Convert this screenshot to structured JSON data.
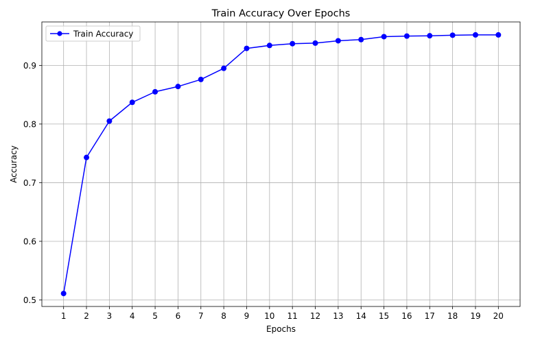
{
  "chart_data": {
    "type": "line",
    "title": "Train Accuracy Over Epochs",
    "xlabel": "Epochs",
    "ylabel": "Accuracy",
    "x": [
      1,
      2,
      3,
      4,
      5,
      6,
      7,
      8,
      9,
      10,
      11,
      12,
      13,
      14,
      15,
      16,
      17,
      18,
      19,
      20
    ],
    "series": [
      {
        "name": "Train Accuracy",
        "color": "#0000ff",
        "marker": "circle",
        "values": [
          0.511,
          0.743,
          0.805,
          0.837,
          0.855,
          0.864,
          0.876,
          0.895,
          0.929,
          0.934,
          0.937,
          0.938,
          0.942,
          0.944,
          0.949,
          0.95,
          0.9505,
          0.9515,
          0.952,
          0.952
        ]
      }
    ],
    "xticks": [
      "1",
      "2",
      "3",
      "4",
      "5",
      "6",
      "7",
      "8",
      "9",
      "10",
      "11",
      "12",
      "13",
      "14",
      "15",
      "16",
      "17",
      "18",
      "19",
      "20"
    ],
    "yticks": [
      0.5,
      0.6,
      0.7,
      0.8,
      0.9
    ],
    "ytick_labels": [
      "0.5",
      "0.6",
      "0.7",
      "0.8",
      "0.9"
    ],
    "xlim": [
      0.05,
      20.95
    ],
    "ylim": [
      0.4889,
      0.9741
    ],
    "grid": true,
    "legend_position": "top-left"
  }
}
